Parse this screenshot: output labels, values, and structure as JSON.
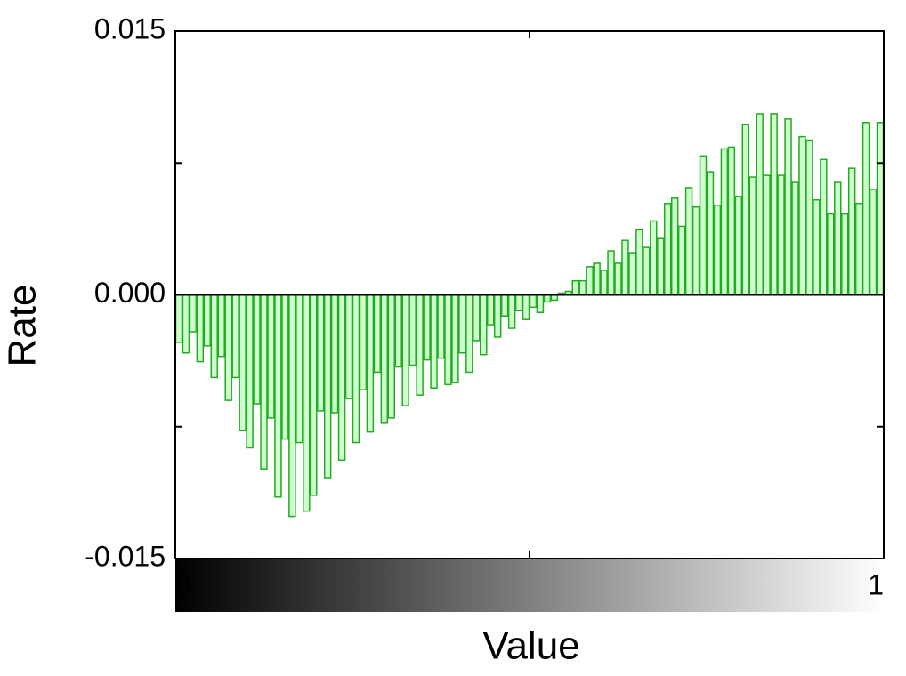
{
  "chart_data": {
    "type": "histogram",
    "xlabel": "Value",
    "ylabel": "Rate",
    "bins": [
      0,
      0.01,
      0.02,
      0.03,
      0.04,
      0.05,
      0.06,
      0.07,
      0.08,
      0.09,
      0.1,
      0.11,
      0.12,
      0.13,
      0.14,
      0.15,
      0.16,
      0.17,
      0.18,
      0.19,
      0.2,
      0.21,
      0.22,
      0.23,
      0.24,
      0.25,
      0.26,
      0.27,
      0.28,
      0.29,
      0.3,
      0.31,
      0.32,
      0.33,
      0.34,
      0.35,
      0.36,
      0.37,
      0.38,
      0.39,
      0.4,
      0.41,
      0.42,
      0.43,
      0.44,
      0.45,
      0.46,
      0.47,
      0.48,
      0.49,
      0.5,
      0.51,
      0.52,
      0.53,
      0.54,
      0.55,
      0.56,
      0.57,
      0.58,
      0.59,
      0.6,
      0.61,
      0.62,
      0.63,
      0.64,
      0.65,
      0.66,
      0.67,
      0.68,
      0.69,
      0.7,
      0.71,
      0.72,
      0.73,
      0.74,
      0.75,
      0.76,
      0.77,
      0.78,
      0.79,
      0.8,
      0.81,
      0.82,
      0.83,
      0.84,
      0.85,
      0.86,
      0.87,
      0.88,
      0.89,
      0.9,
      0.91,
      0.92,
      0.93,
      0.94,
      0.95,
      0.96,
      0.97,
      0.98,
      0.99,
      1
    ],
    "values": [
      -0.0027,
      -0.0033,
      -0.0021,
      -0.0038,
      -0.0029,
      -0.0047,
      -0.0035,
      -0.006,
      -0.0047,
      -0.0077,
      -0.0087,
      -0.0062,
      -0.0099,
      -0.007,
      -0.0115,
      -0.0082,
      -0.0126,
      -0.0084,
      -0.0123,
      -0.0114,
      -0.0066,
      -0.0104,
      -0.0067,
      -0.0094,
      -0.0059,
      -0.0084,
      -0.0054,
      -0.0078,
      -0.0044,
      -0.0073,
      -0.007,
      -0.0041,
      -0.0063,
      -0.004,
      -0.0057,
      -0.0037,
      -0.0053,
      -0.0036,
      -0.0051,
      -0.005,
      -0.0033,
      -0.0044,
      -0.0026,
      -0.0034,
      -0.0017,
      -0.0024,
      -0.0012,
      -0.0019,
      -0.0009,
      -0.0014,
      -0.0007,
      -0.001,
      -0.0004,
      -0.0003,
      0.0001,
      0.0002,
      0.0008,
      0.0008,
      0.0016,
      0.0018,
      0.0014,
      0.0025,
      0.0018,
      0.0031,
      0.0024,
      0.0037,
      0.0027,
      0.0042,
      0.0032,
      0.0052,
      0.0055,
      0.0039,
      0.0061,
      0.005,
      0.0079,
      0.007,
      0.0051,
      0.0083,
      0.0084,
      0.0056,
      0.0097,
      0.0067,
      0.0103,
      0.0068,
      0.0103,
      0.0068,
      0.01,
      0.0064,
      0.009,
      0.0088,
      0.0054,
      0.0077,
      0.0046,
      0.0064,
      0.0046,
      0.0072,
      0.0052,
      0.0098,
      0.006,
      0.0098
    ],
    "color": "#22aa22",
    "fill": "#ccffcc",
    "xlim": [
      0,
      1
    ],
    "ylim": [
      -0.015,
      0.015
    ],
    "xticks": [
      0,
      1
    ],
    "minor_xticks": [
      0.5
    ],
    "yticks": [
      {
        "value": -0.015,
        "label": "-0.015"
      },
      {
        "value": 0,
        "label": "0.000"
      },
      {
        "value": 0.015,
        "label": "0.015"
      }
    ],
    "minor_yticks": [
      -0.0075,
      0.0075
    ],
    "colorbar": {
      "colors": [
        "#000000",
        "#ffffff"
      ]
    }
  }
}
